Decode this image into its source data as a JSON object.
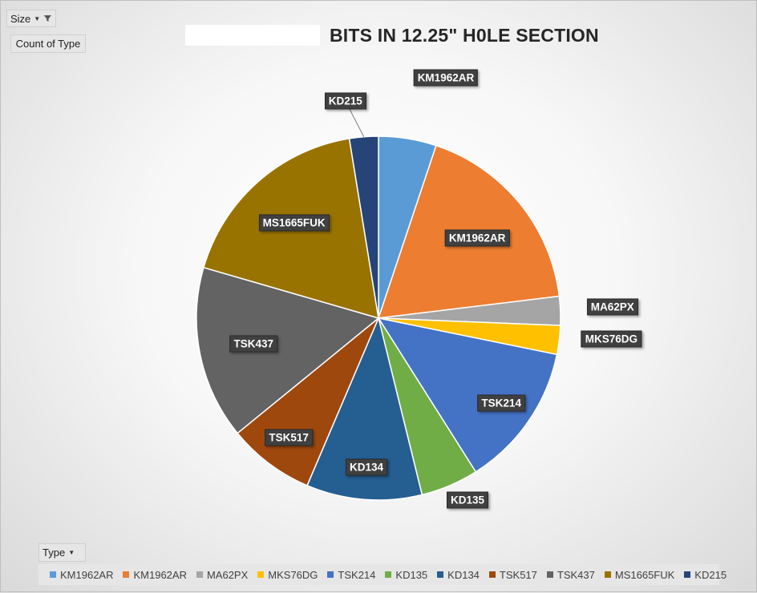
{
  "filters": {
    "size_label": "Size",
    "value_field_label": "Count of Type",
    "axis_field_label": "Type"
  },
  "chart_data": {
    "type": "pie",
    "title": "BITS IN 12.25\" H0LE SECTION",
    "legend_title": "Type",
    "legend_position": "bottom",
    "slices": [
      {
        "name": "KM1962AR",
        "value": 2,
        "color": "#5B9BD5"
      },
      {
        "name": "KM1962AR",
        "value": 7,
        "color": "#ED7D31"
      },
      {
        "name": "MA62PX",
        "value": 1,
        "color": "#A5A5A5"
      },
      {
        "name": "MKS76DG",
        "value": 1,
        "color": "#FFC000"
      },
      {
        "name": "TSK214",
        "value": 5,
        "color": "#4472C4"
      },
      {
        "name": "KD135",
        "value": 2,
        "color": "#70AD47"
      },
      {
        "name": "KD134",
        "value": 4,
        "color": "#255E91"
      },
      {
        "name": "TSK517",
        "value": 3,
        "color": "#9E480E"
      },
      {
        "name": "TSK437",
        "value": 6,
        "color": "#636363"
      },
      {
        "name": "MS1665FUK",
        "value": 7,
        "color": "#997300"
      },
      {
        "name": "KD215",
        "value": 1,
        "color": "#264478"
      }
    ]
  }
}
